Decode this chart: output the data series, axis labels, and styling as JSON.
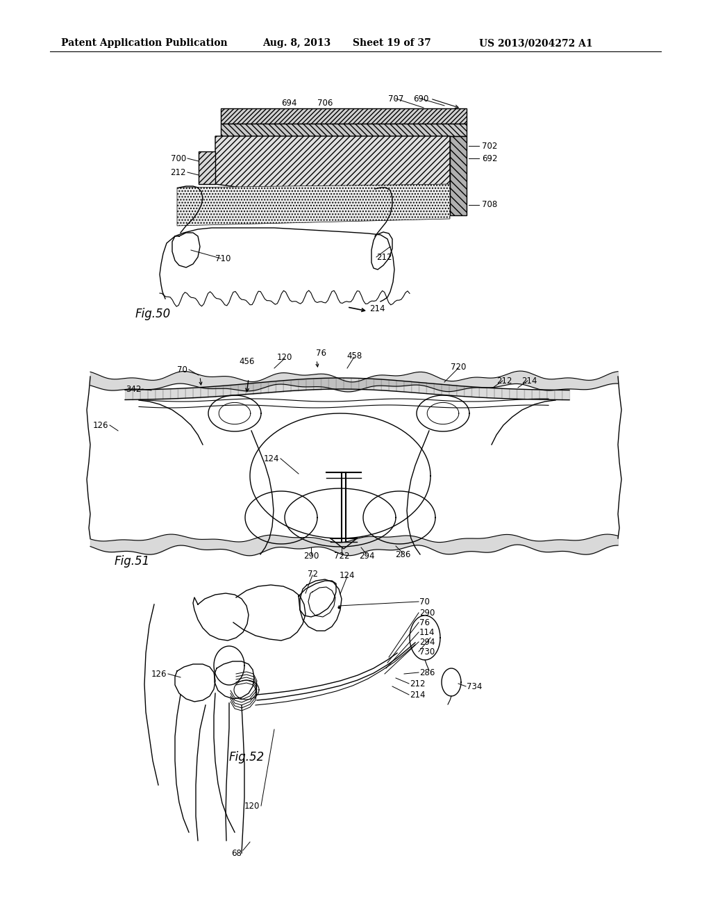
{
  "bg_color": "#ffffff",
  "line_color": "#000000",
  "header_text": "Patent Application Publication",
  "header_date": "Aug. 8, 2013",
  "header_sheet": "Sheet 19 of 37",
  "header_patent": "US 2013/0204272 A1",
  "fig50_label": "Fig.50",
  "fig51_label": "Fig.51",
  "fig52_label": "Fig.52",
  "font_size_header": 10,
  "font_size_label": 12,
  "font_size_ref": 8.5
}
